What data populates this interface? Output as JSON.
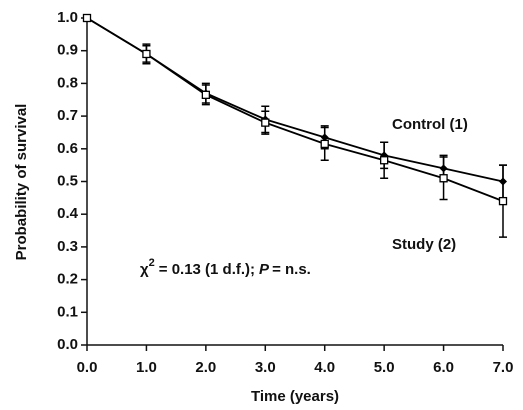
{
  "chart_data": {
    "type": "line",
    "xlabel": "Time (years)",
    "ylabel": "Probability of survival",
    "x": [
      0,
      1,
      2,
      3,
      4,
      5,
      6,
      7
    ],
    "xlim": [
      0,
      7
    ],
    "xticks": [
      {
        "value": 0,
        "label": "0.0"
      },
      {
        "value": 1,
        "label": "1.0"
      },
      {
        "value": 2,
        "label": "2.0"
      },
      {
        "value": 3,
        "label": "3.0"
      },
      {
        "value": 4,
        "label": "4.0"
      },
      {
        "value": 5,
        "label": "5.0"
      },
      {
        "value": 6,
        "label": "6.0"
      },
      {
        "value": 7,
        "label": "7.0"
      }
    ],
    "ylim": [
      0,
      1
    ],
    "yticks": [
      {
        "value": 0,
        "label": "0.0"
      },
      {
        "value": 0.1,
        "label": "0.1"
      },
      {
        "value": 0.2,
        "label": "0.2"
      },
      {
        "value": 0.3,
        "label": "0.3"
      },
      {
        "value": 0.4,
        "label": "0.4"
      },
      {
        "value": 0.5,
        "label": "0.5"
      },
      {
        "value": 0.6,
        "label": "0.6"
      },
      {
        "value": 0.7,
        "label": "0.7"
      },
      {
        "value": 0.8,
        "label": "0.8"
      },
      {
        "value": 0.9,
        "label": "0.9"
      },
      {
        "value": 1,
        "label": "1.0"
      }
    ],
    "grid": false,
    "series": [
      {
        "name": "Control (1)",
        "color": "#000000",
        "marker": "diamond",
        "values": [
          1.0,
          0.89,
          0.77,
          0.69,
          0.635,
          0.58,
          0.54,
          0.5
        ],
        "errors": [
          null,
          0.025,
          0.03,
          0.04,
          0.035,
          0.04,
          0.04,
          0.05
        ]
      },
      {
        "name": "Study (2)",
        "color": "#000000",
        "marker": "square",
        "values": [
          1.0,
          0.89,
          0.765,
          0.68,
          0.615,
          0.565,
          0.51,
          0.44
        ],
        "errors": [
          null,
          0.03,
          0.03,
          0.035,
          0.05,
          0.055,
          0.065,
          0.11
        ]
      }
    ],
    "stat_annotation": [
      "χ",
      "2",
      "= 0.13 (1 d.f.);",
      "P",
      "= n.s."
    ]
  }
}
